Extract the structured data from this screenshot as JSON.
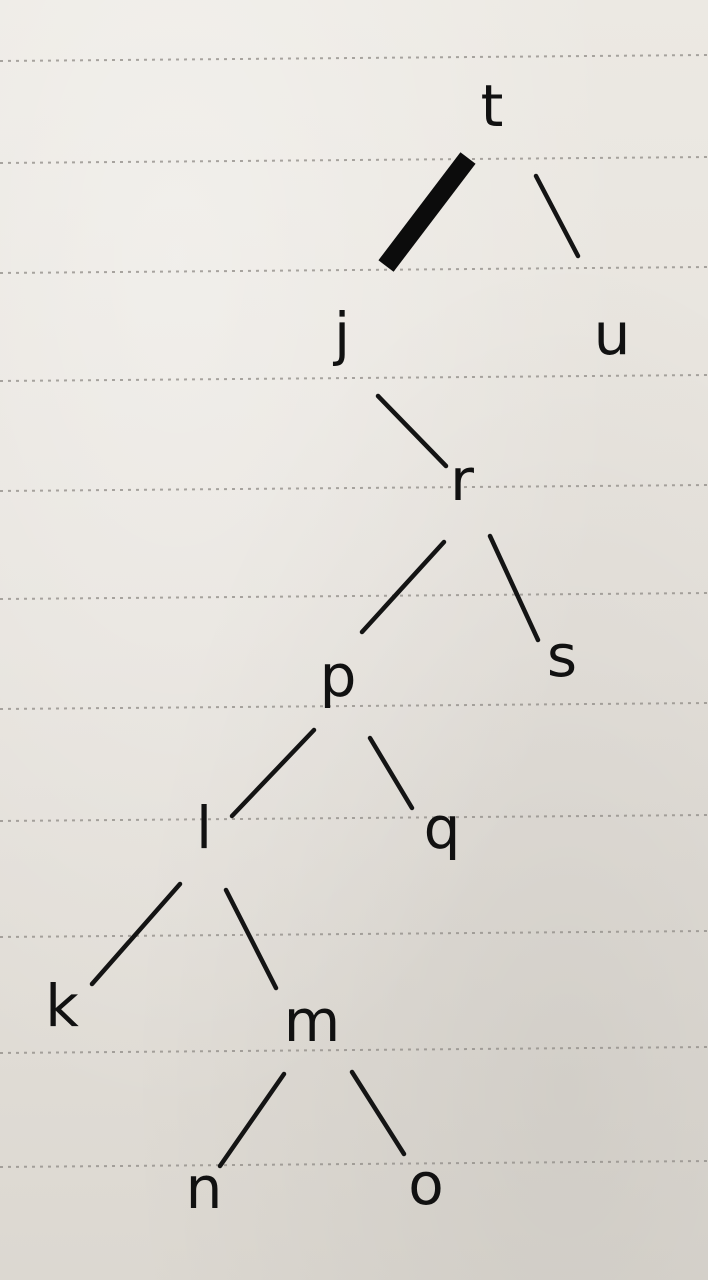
{
  "tree": {
    "nodes": [
      {
        "id": "t",
        "label": "t"
      },
      {
        "id": "j",
        "label": "j"
      },
      {
        "id": "u",
        "label": "u"
      },
      {
        "id": "r",
        "label": "r"
      },
      {
        "id": "p",
        "label": "p"
      },
      {
        "id": "s",
        "label": "s"
      },
      {
        "id": "l",
        "label": "l"
      },
      {
        "id": "q",
        "label": "q"
      },
      {
        "id": "k",
        "label": "k"
      },
      {
        "id": "m",
        "label": "m"
      },
      {
        "id": "n",
        "label": "n"
      },
      {
        "id": "o",
        "label": "o"
      }
    ],
    "edges": [
      {
        "from": "t",
        "to": "j",
        "emphasis": "bold"
      },
      {
        "from": "t",
        "to": "u"
      },
      {
        "from": "j",
        "to": "r"
      },
      {
        "from": "r",
        "to": "p"
      },
      {
        "from": "r",
        "to": "s"
      },
      {
        "from": "p",
        "to": "l"
      },
      {
        "from": "p",
        "to": "q"
      },
      {
        "from": "l",
        "to": "k"
      },
      {
        "from": "l",
        "to": "m"
      },
      {
        "from": "m",
        "to": "n"
      },
      {
        "from": "m",
        "to": "o"
      }
    ]
  },
  "colors": {
    "ink": "#111111",
    "paper": "#e8e5df",
    "rule": "#8f8b86"
  }
}
